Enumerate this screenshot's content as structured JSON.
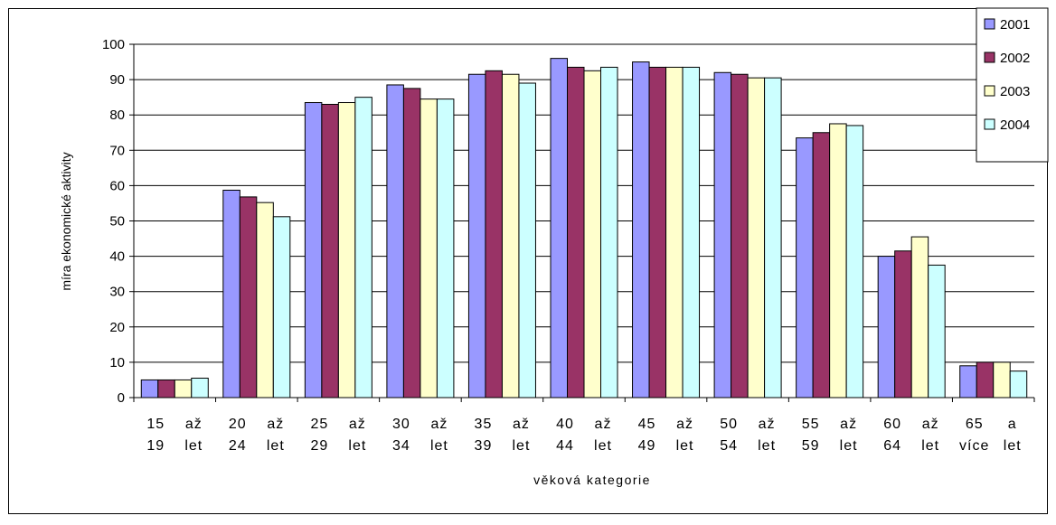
{
  "chart_data": {
    "type": "bar",
    "title": "",
    "xlabel": "věková kategorie",
    "ylabel": "míra ekonomické aktivity",
    "ylim": [
      0,
      100
    ],
    "yticks": [
      0,
      10,
      20,
      30,
      40,
      50,
      60,
      70,
      80,
      90,
      100
    ],
    "grid": true,
    "legend_position": "top-right",
    "categories": [
      [
        "15",
        "až",
        "19",
        "let"
      ],
      [
        "20",
        "až",
        "24",
        "let"
      ],
      [
        "25",
        "až",
        "29",
        "let"
      ],
      [
        "30",
        "až",
        "34",
        "let"
      ],
      [
        "35",
        "až",
        "39",
        "let"
      ],
      [
        "40",
        "až",
        "44",
        "let"
      ],
      [
        "45",
        "až",
        "49",
        "let"
      ],
      [
        "50",
        "až",
        "54",
        "let"
      ],
      [
        "55",
        "až",
        "59",
        "let"
      ],
      [
        "60",
        "až",
        "64",
        "let"
      ],
      [
        "65",
        "a",
        "více",
        "let"
      ]
    ],
    "series": [
      {
        "name": "2001",
        "color": "#9999ff",
        "values": [
          5,
          58.7,
          83.5,
          88.5,
          91.5,
          96,
          95,
          92,
          73.5,
          40,
          9
        ]
      },
      {
        "name": "2002",
        "color": "#993366",
        "values": [
          5,
          56.8,
          83,
          87.5,
          92.5,
          93.5,
          93.5,
          91.5,
          75,
          41.5,
          10
        ]
      },
      {
        "name": "2003",
        "color": "#ffffcc",
        "values": [
          5,
          55.2,
          83.5,
          84.5,
          91.5,
          92.5,
          93.5,
          90.5,
          77.5,
          45.5,
          10
        ]
      },
      {
        "name": "2004",
        "color": "#ccffff",
        "values": [
          5.5,
          51.2,
          85,
          84.5,
          89,
          93.5,
          93.5,
          90.5,
          77,
          37.5,
          7.5
        ]
      }
    ]
  }
}
